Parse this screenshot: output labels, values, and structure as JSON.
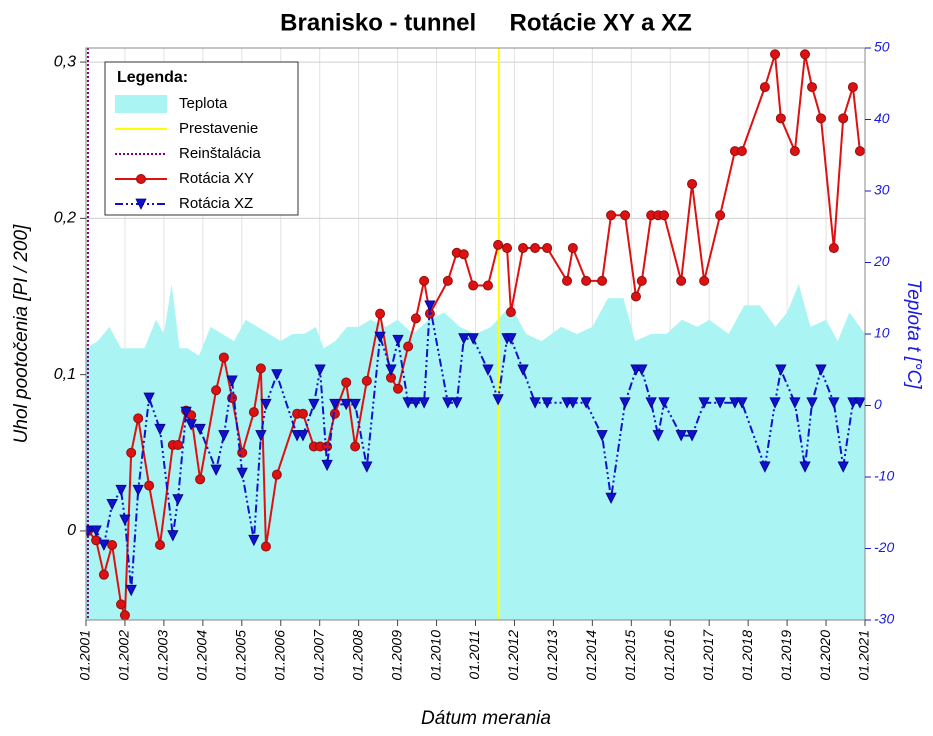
{
  "chart_data": {
    "type": "line",
    "title": "Branisko - tunnel     Rotácie XY a XZ",
    "xlabel": "Dátum merania",
    "ylabel": "Uhol pootočenia [PI / 200]",
    "y2label": "Teplota t [°C]",
    "legend_title": "Legenda:",
    "legend": "upper left",
    "grid": true,
    "xlim": [
      2001,
      2021
    ],
    "xticks": [
      {
        "value": 2001,
        "label": "01.2001"
      },
      {
        "value": 2002,
        "label": "01.2002"
      },
      {
        "value": 2003,
        "label": "01.2003"
      },
      {
        "value": 2004,
        "label": "01.2004"
      },
      {
        "value": 2005,
        "label": "01.2005"
      },
      {
        "value": 2006,
        "label": "01.2006"
      },
      {
        "value": 2007,
        "label": "01.2007"
      },
      {
        "value": 2008,
        "label": "01.2008"
      },
      {
        "value": 2009,
        "label": "01.2009"
      },
      {
        "value": 2010,
        "label": "01.2010"
      },
      {
        "value": 2011,
        "label": "01.2011"
      },
      {
        "value": 2012,
        "label": "01.2012"
      },
      {
        "value": 2013,
        "label": "01.2013"
      },
      {
        "value": 2014,
        "label": "01.2014"
      },
      {
        "value": 2015,
        "label": "01.2015"
      },
      {
        "value": 2016,
        "label": "01.2016"
      },
      {
        "value": 2017,
        "label": "01.2017"
      },
      {
        "value": 2018,
        "label": "01.2018"
      },
      {
        "value": 2019,
        "label": "01.2019"
      },
      {
        "value": 2020,
        "label": "01.2020"
      },
      {
        "value": 2021,
        "label": "01.2021"
      }
    ],
    "ylim": [
      -0.057,
      0.309
    ],
    "yticks": [
      0,
      {
        "value": 0.1,
        "label": "0,1"
      },
      {
        "value": 0.2,
        "label": "0,2"
      },
      {
        "value": 0.3,
        "label": "0,3"
      }
    ],
    "y2lim": [
      -30,
      50
    ],
    "y2ticks": [
      -30,
      -20,
      -10,
      0,
      10,
      20,
      30,
      40,
      50
    ],
    "vlines": [
      {
        "name": "Prestavenie",
        "x": 2011.6,
        "color": "#ffff00"
      },
      {
        "name": "Reinštalácia",
        "x": 2001.05,
        "color": "#800080"
      }
    ],
    "x": [
      2001.05,
      2001.26,
      2001.46,
      2001.67,
      2001.9,
      2002.0,
      2002.16,
      2002.34,
      2002.62,
      2002.9,
      2003.23,
      2003.36,
      2003.57,
      2003.7,
      2003.93,
      2004.34,
      2004.54,
      2004.75,
      2005.01,
      2005.31,
      2005.49,
      2005.62,
      2005.9,
      2006.42,
      2006.57,
      2006.85,
      2007.01,
      2007.19,
      2007.39,
      2007.68,
      2007.91,
      2008.21,
      2008.55,
      2008.83,
      2009.01,
      2009.27,
      2009.47,
      2009.68,
      2009.83,
      2010.29,
      2010.52,
      2010.7,
      2010.94,
      2011.32,
      2011.58,
      2011.81,
      2011.91,
      2012.22,
      2012.53,
      2012.84,
      2013.35,
      2013.5,
      2013.84,
      2014.25,
      2014.48,
      2014.84,
      2015.12,
      2015.27,
      2015.51,
      2015.69,
      2015.84,
      2016.28,
      2016.56,
      2016.87,
      2017.28,
      2017.66,
      2017.84,
      2018.43,
      2018.69,
      2018.84,
      2019.2,
      2019.46,
      2019.64,
      2019.87,
      2020.2,
      2020.44,
      2020.69,
      2020.87
    ],
    "series": [
      {
        "name": "Teplota",
        "kind": "area",
        "axis": "y2",
        "color": "#aaf4f4",
        "x": [
          2001.0,
          2001.3,
          2001.6,
          2001.9,
          2002.2,
          2002.5,
          2002.8,
          2003.0,
          2003.2,
          2003.4,
          2003.6,
          2003.9,
          2004.2,
          2004.5,
          2004.8,
          2005.1,
          2005.4,
          2005.7,
          2006.0,
          2006.3,
          2006.6,
          2006.9,
          2007.1,
          2007.4,
          2007.7,
          2008.0,
          2008.3,
          2008.7,
          2009.0,
          2009.4,
          2009.8,
          2010.2,
          2010.6,
          2011.0,
          2011.4,
          2011.9,
          2012.3,
          2012.7,
          2013.2,
          2013.6,
          2014.0,
          2014.4,
          2014.8,
          2015.1,
          2015.5,
          2015.9,
          2016.3,
          2016.7,
          2017.0,
          2017.5,
          2017.9,
          2018.3,
          2018.7,
          2019.0,
          2019.3,
          2019.6,
          2020.0,
          2020.3,
          2020.6,
          2021.0
        ],
        "values": [
          8,
          9,
          11,
          8,
          8,
          8,
          12,
          10,
          17,
          8,
          8,
          7,
          11,
          10,
          9,
          12,
          11,
          10,
          9,
          10,
          10,
          11,
          8,
          9,
          11,
          11,
          12,
          11,
          12,
          10,
          12,
          13,
          11,
          10,
          11,
          14,
          10,
          9,
          11,
          10,
          11,
          15,
          15,
          9,
          10,
          10,
          12,
          11,
          12,
          10,
          14,
          14,
          11,
          13,
          17,
          11,
          12,
          9,
          13,
          10
        ]
      },
      {
        "name": "Rotácia XY",
        "kind": "line",
        "marker": "circle",
        "color": "#dd1111",
        "values": [
          0,
          -0.006,
          -0.028,
          -0.009,
          -0.047,
          -0.054,
          0.05,
          0.072,
          0.029,
          -0.009,
          0.055,
          0.055,
          0.077,
          0.074,
          0.033,
          0.09,
          0.111,
          0.085,
          0.05,
          0.076,
          0.104,
          -0.01,
          0.036,
          0.075,
          0.075,
          0.054,
          0.054,
          0.054,
          0.075,
          0.095,
          0.054,
          0.096,
          0.139,
          0.098,
          0.091,
          0.118,
          0.136,
          0.16,
          0.139,
          0.16,
          0.178,
          0.177,
          0.157,
          0.157,
          0.183,
          0.181,
          0.14,
          0.181,
          0.181,
          0.181,
          0.16,
          0.181,
          0.16,
          0.16,
          0.202,
          0.202,
          0.15,
          0.16,
          0.202,
          0.202,
          0.202,
          0.16,
          0.222,
          0.16,
          0.202,
          0.243,
          0.243,
          0.284,
          0.305,
          0.264,
          0.243,
          0.305,
          0.284,
          0.264,
          0.181,
          0.264,
          0.284,
          0.243
        ]
      },
      {
        "name": "Rotácia XZ",
        "kind": "line",
        "marker": "triangle-down",
        "dash": "8 3 2 3 2 3",
        "color": "#1111cc",
        "values": [
          0,
          0,
          -0.009,
          0.017,
          0.026,
          0.007,
          -0.038,
          0.026,
          0.085,
          0.065,
          -0.003,
          0.02,
          0.076,
          0.068,
          0.065,
          0.039,
          0.061,
          0.096,
          0.037,
          -0.006,
          0.061,
          0.081,
          0.1,
          0.061,
          0.061,
          0.081,
          0.103,
          0.042,
          0.081,
          0.081,
          0.081,
          0.041,
          0.124,
          0.103,
          0.122,
          0.082,
          0.082,
          0.082,
          0.144,
          0.082,
          0.082,
          0.123,
          0.123,
          0.103,
          0.084,
          0.123,
          0.123,
          0.103,
          0.082,
          0.082,
          0.082,
          0.082,
          0.082,
          0.061,
          0.021,
          0.082,
          0.103,
          0.103,
          0.082,
          0.061,
          0.082,
          0.061,
          0.061,
          0.082,
          0.082,
          0.082,
          0.082,
          0.041,
          0.082,
          0.103,
          0.082,
          0.041,
          0.082,
          0.103,
          0.082,
          0.041,
          0.082,
          0.082
        ]
      }
    ]
  }
}
